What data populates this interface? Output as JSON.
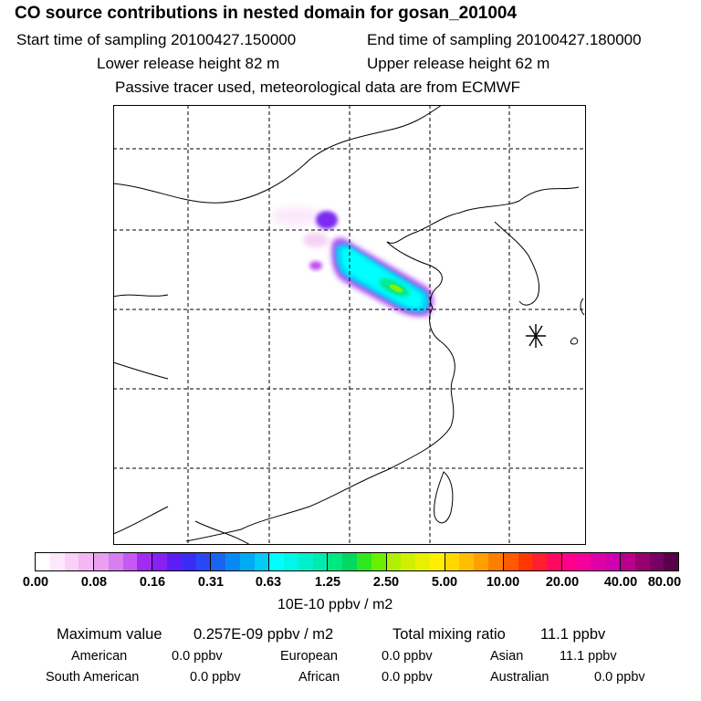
{
  "header": {
    "title": "CO  source contributions in nested domain for gosan_201004",
    "start_time": "Start time of sampling 20100427.150000",
    "end_time": "End time of sampling 20100427.180000",
    "lower_release": "Lower release height   82 m",
    "upper_release": "Upper release height   62 m",
    "tracer_note": "Passive tracer used, meteorological data are from ECMWF"
  },
  "colorbar": {
    "ticks": [
      "0.00",
      "0.08",
      "0.16",
      "0.31",
      "0.63",
      "1.25",
      "2.50",
      "5.00",
      "10.00",
      "20.00",
      "40.00",
      "80.00"
    ],
    "unit": "10E-10 ppbv / m2",
    "segments": [
      [
        "#ffffff",
        "#fce7fc",
        "#f8d0f8",
        "#f3b7f3"
      ],
      [
        "#e9a0f0",
        "#d77ef0",
        "#c45af3",
        "#a12cf0"
      ],
      [
        "#8622f2",
        "#5a1ef2",
        "#3a2cf2",
        "#2a48f2"
      ],
      [
        "#1a64f2",
        "#0a88f2",
        "#00aaf5",
        "#00ccf5"
      ],
      [
        "#00ffff",
        "#00f6e8",
        "#00f0cc",
        "#00eab0"
      ],
      [
        "#00e880",
        "#00d860",
        "#2ee820",
        "#68f000"
      ],
      [
        "#b0f000",
        "#d0f000",
        "#e8f000",
        "#fff000"
      ],
      [
        "#ffd800",
        "#ffbe00",
        "#ffa000",
        "#ff7e00"
      ],
      [
        "#ff5a00",
        "#ff3800",
        "#ff1e30",
        "#ff0860"
      ],
      [
        "#ff008c",
        "#f4009c",
        "#e000a8",
        "#d000b0"
      ],
      [
        "#b8008c",
        "#980070",
        "#780060",
        "#580048"
      ]
    ]
  },
  "summary": {
    "max_label": "Maximum value",
    "max_value": "0.257E-09 ppbv / m2",
    "total_label": "Total mixing ratio",
    "total_value": "11.1 ppbv"
  },
  "regions": [
    {
      "name": "American",
      "value": "0.0 ppbv"
    },
    {
      "name": "European",
      "value": "0.0 ppbv"
    },
    {
      "name": "Asian",
      "value": "11.1 ppbv"
    },
    {
      "name": "South American",
      "value": "0.0 ppbv"
    },
    {
      "name": "African",
      "value": "0.0 ppbv"
    },
    {
      "name": "Australian",
      "value": "0.0 ppbv"
    }
  ],
  "colors": {
    "plume_core": "#00e870",
    "plume_mid": "#00f8ff",
    "plume_edge": "#a040f0"
  }
}
